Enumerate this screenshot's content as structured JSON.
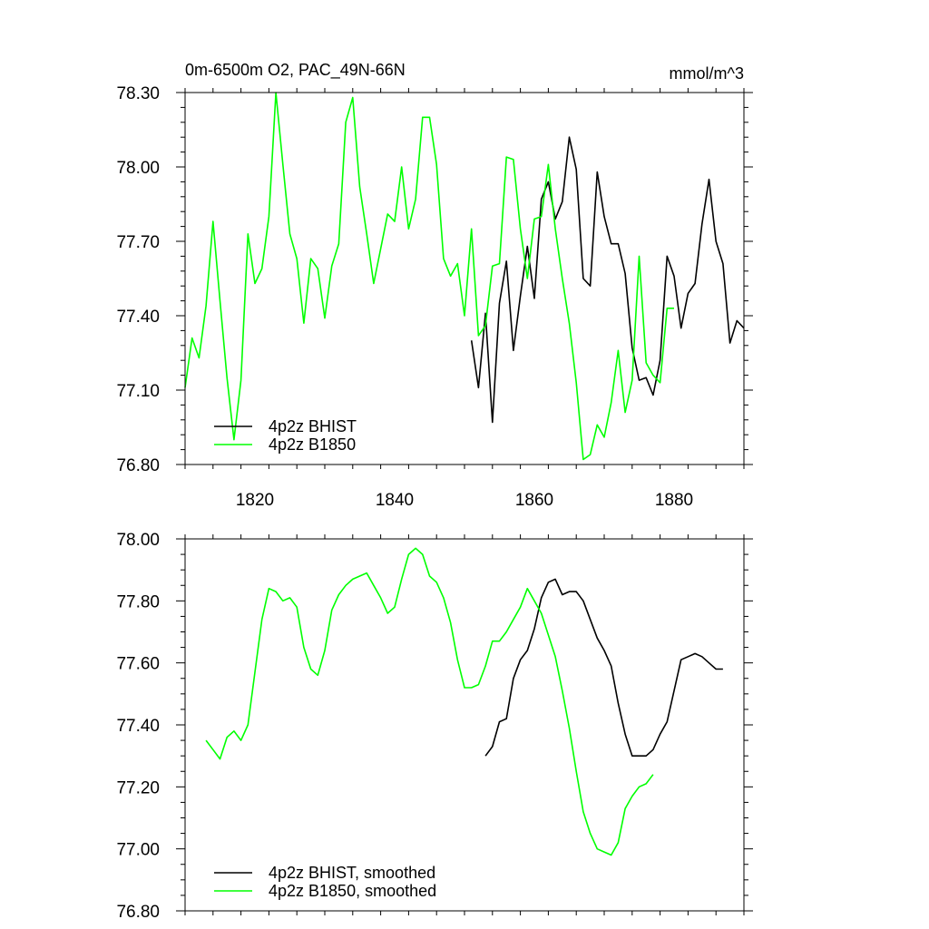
{
  "title_left": "0m-6500m O2, PAC_49N-66N",
  "title_right": "mmol/m^3",
  "colors": {
    "bhist": "#000000",
    "b1850": "#00ff00"
  },
  "chart_data": [
    {
      "type": "line",
      "title": "0m-6500m O2, PAC_49N-66N",
      "units": "mmol/m^3",
      "xlim": [
        1810,
        1890
      ],
      "ylim": [
        76.8,
        78.3
      ],
      "x_tick_labels": [
        "1820",
        "1840",
        "1860",
        "1880"
      ],
      "y_tick_labels": [
        "78.30",
        "78.00",
        "77.70",
        "77.40",
        "77.10",
        "76.80"
      ],
      "legend_position": "bottom-left",
      "grid": false,
      "series": [
        {
          "name": "4p2z BHIST",
          "color": "#000000",
          "x": [
            1851,
            1852,
            1853,
            1854,
            1855,
            1856,
            1857,
            1858,
            1859,
            1860,
            1861,
            1862,
            1863,
            1864,
            1865,
            1866,
            1867,
            1868,
            1869,
            1870,
            1871,
            1872,
            1873,
            1874,
            1875,
            1876,
            1877,
            1878,
            1879,
            1880,
            1881,
            1882,
            1883,
            1884,
            1885,
            1886,
            1887,
            1888,
            1889,
            1890
          ],
          "y": [
            77.3,
            77.11,
            77.41,
            76.97,
            77.45,
            77.62,
            77.26,
            77.48,
            77.68,
            77.47,
            77.87,
            77.94,
            77.79,
            77.86,
            78.12,
            77.99,
            77.55,
            77.52,
            77.98,
            77.8,
            77.69,
            77.69,
            77.57,
            77.27,
            77.14,
            77.15,
            77.08,
            77.22,
            77.64,
            77.56,
            77.35,
            77.49,
            77.53,
            77.77,
            77.95,
            77.7,
            77.61,
            77.29,
            77.38,
            77.35
          ]
        },
        {
          "name": "4p2z B1850",
          "color": "#00ff00",
          "x": [
            1810,
            1811,
            1812,
            1813,
            1814,
            1815,
            1816,
            1817,
            1818,
            1819,
            1820,
            1821,
            1822,
            1823,
            1824,
            1825,
            1826,
            1827,
            1828,
            1829,
            1830,
            1831,
            1832,
            1833,
            1834,
            1835,
            1836,
            1837,
            1838,
            1839,
            1840,
            1841,
            1842,
            1843,
            1844,
            1845,
            1846,
            1847,
            1848,
            1849,
            1850,
            1851,
            1852,
            1853,
            1854,
            1855,
            1856,
            1857,
            1858,
            1859,
            1860,
            1861,
            1862,
            1863,
            1864,
            1865,
            1866,
            1867,
            1868,
            1869,
            1870,
            1871,
            1872,
            1873,
            1874,
            1875,
            1876,
            1877,
            1878,
            1879,
            1880
          ],
          "y": [
            77.11,
            77.31,
            77.23,
            77.44,
            77.78,
            77.46,
            77.15,
            76.9,
            77.14,
            77.73,
            77.53,
            77.59,
            77.8,
            78.3,
            78.01,
            77.73,
            77.63,
            77.37,
            77.63,
            77.59,
            77.39,
            77.6,
            77.69,
            78.18,
            78.28,
            77.92,
            77.73,
            77.53,
            77.67,
            77.81,
            77.78,
            78.0,
            77.75,
            77.87,
            78.2,
            78.2,
            78.01,
            77.63,
            77.56,
            77.61,
            77.4,
            77.75,
            77.32,
            77.36,
            77.6,
            77.61,
            78.04,
            78.03,
            77.75,
            77.55,
            77.79,
            77.8,
            78.01,
            77.75,
            77.55,
            77.37,
            77.13,
            76.82,
            76.84,
            76.96,
            76.91,
            77.05,
            77.26,
            77.01,
            77.14,
            77.64,
            77.21,
            77.16,
            77.13,
            77.43,
            77.43
          ]
        }
      ]
    },
    {
      "type": "line",
      "xlim": [
        1810,
        1890
      ],
      "ylim": [
        76.8,
        78.0
      ],
      "y_tick_labels": [
        "78.00",
        "77.80",
        "77.60",
        "77.40",
        "77.20",
        "77.00",
        "76.80"
      ],
      "legend_position": "bottom-left",
      "grid": false,
      "series": [
        {
          "name": "4p2z BHIST, smoothed",
          "color": "#000000",
          "x": [
            1853,
            1854,
            1855,
            1856,
            1857,
            1858,
            1859,
            1860,
            1861,
            1862,
            1863,
            1864,
            1865,
            1866,
            1867,
            1868,
            1869,
            1870,
            1871,
            1872,
            1873,
            1874,
            1875,
            1876,
            1877,
            1878,
            1879,
            1880,
            1881,
            1882,
            1883,
            1884,
            1885,
            1886,
            1887
          ],
          "y": [
            77.3,
            77.33,
            77.41,
            77.42,
            77.55,
            77.61,
            77.64,
            77.71,
            77.81,
            77.86,
            77.87,
            77.82,
            77.83,
            77.83,
            77.8,
            77.74,
            77.68,
            77.64,
            77.59,
            77.47,
            77.37,
            77.3,
            77.3,
            77.3,
            77.32,
            77.37,
            77.41,
            77.51,
            77.61,
            77.62,
            77.63,
            77.62,
            77.6,
            77.58,
            77.58
          ]
        },
        {
          "name": "4p2z B1850, smoothed",
          "color": "#00ff00",
          "x": [
            1813,
            1814,
            1815,
            1816,
            1817,
            1818,
            1819,
            1820,
            1821,
            1822,
            1823,
            1824,
            1825,
            1826,
            1827,
            1828,
            1829,
            1830,
            1831,
            1832,
            1833,
            1834,
            1835,
            1836,
            1837,
            1838,
            1839,
            1840,
            1841,
            1842,
            1843,
            1844,
            1845,
            1846,
            1847,
            1848,
            1849,
            1850,
            1851,
            1852,
            1853,
            1854,
            1855,
            1856,
            1857,
            1858,
            1859,
            1860,
            1861,
            1862,
            1863,
            1864,
            1865,
            1866,
            1867,
            1868,
            1869,
            1870,
            1871,
            1872,
            1873,
            1874,
            1875,
            1876,
            1877
          ],
          "y": [
            77.35,
            77.32,
            77.29,
            77.36,
            77.38,
            77.35,
            77.4,
            77.57,
            77.74,
            77.84,
            77.83,
            77.8,
            77.81,
            77.78,
            77.65,
            77.58,
            77.56,
            77.64,
            77.77,
            77.82,
            77.85,
            77.87,
            77.88,
            77.89,
            77.85,
            77.81,
            77.76,
            77.78,
            77.87,
            77.95,
            77.97,
            77.95,
            77.88,
            77.86,
            77.81,
            77.73,
            77.61,
            77.52,
            77.52,
            77.53,
            77.59,
            77.67,
            77.67,
            77.7,
            77.74,
            77.78,
            77.84,
            77.8,
            77.76,
            77.69,
            77.62,
            77.51,
            77.39,
            77.25,
            77.12,
            77.05,
            77.0,
            76.99,
            76.98,
            77.02,
            77.13,
            77.17,
            77.2,
            77.21,
            77.24
          ]
        }
      ]
    }
  ]
}
